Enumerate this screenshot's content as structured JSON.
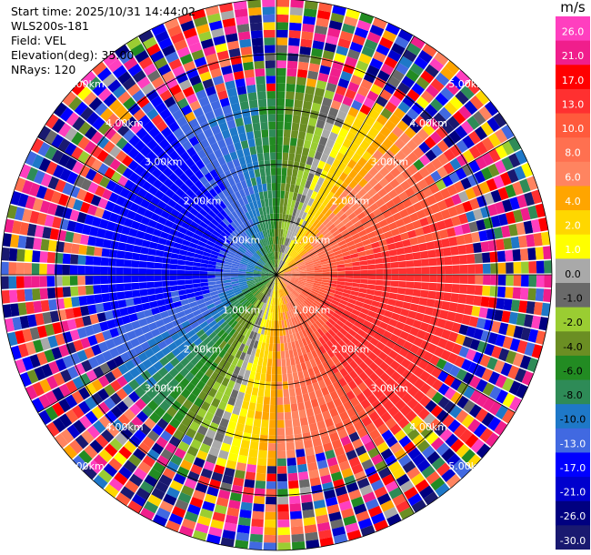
{
  "header": {
    "start_time": "Start time: 2025/10/31 14:44:02",
    "instrument": "WLS200s-181",
    "field": "Field: VEL",
    "elevation": "Elevation(deg): 35.00",
    "nrays": "NRays: 120"
  },
  "chart_data": {
    "type": "ppi",
    "field": "VEL",
    "elevation_deg": 35.0,
    "nrays": 120,
    "max_range_km": 5.0,
    "range_rings_km": [
      1,
      2,
      3,
      4,
      5
    ],
    "range_ring_labels": [
      "1.00km",
      "2.00km",
      "3.00km",
      "4.00km",
      "5.00km"
    ],
    "colorbar": {
      "unit": "m/s",
      "tick_labels": [
        "26.0",
        "21.0",
        "17.0",
        "13.0",
        "10.0",
        "8.0",
        "6.0",
        "4.0",
        "2.0",
        "1.0",
        "0.0",
        "-1.0",
        "-2.0",
        "-4.0",
        "-6.0",
        "-8.0",
        "-10.0",
        "-13.0",
        "-17.0",
        "-21.0",
        "-26.0",
        "-30.0"
      ],
      "bins": [
        {
          "min": 26,
          "max": 30,
          "color": "#ff3fbf"
        },
        {
          "min": 21,
          "max": 26,
          "color": "#f01e8c"
        },
        {
          "min": 17,
          "max": 21,
          "color": "#ff0000"
        },
        {
          "min": 13,
          "max": 17,
          "color": "#ff3030"
        },
        {
          "min": 10,
          "max": 13,
          "color": "#ff5a3c"
        },
        {
          "min": 8,
          "max": 10,
          "color": "#ff7050"
        },
        {
          "min": 6,
          "max": 8,
          "color": "#ff8460"
        },
        {
          "min": 4,
          "max": 6,
          "color": "#ffa500"
        },
        {
          "min": 2,
          "max": 4,
          "color": "#ffd700"
        },
        {
          "min": 1,
          "max": 2,
          "color": "#ffff00"
        },
        {
          "min": 0,
          "max": 1,
          "color": "#a9a9a9"
        },
        {
          "min": -1,
          "max": 0,
          "color": "#696969"
        },
        {
          "min": -2,
          "max": -1,
          "color": "#9acd32"
        },
        {
          "min": -4,
          "max": -2,
          "color": "#6b8e23"
        },
        {
          "min": -6,
          "max": -4,
          "color": "#228b22"
        },
        {
          "min": -8,
          "max": -6,
          "color": "#2e8b57"
        },
        {
          "min": -10,
          "max": -8,
          "color": "#1e78c8"
        },
        {
          "min": -13,
          "max": -10,
          "color": "#4169e1"
        },
        {
          "min": -17,
          "max": -13,
          "color": "#0000ff"
        },
        {
          "min": -21,
          "max": -17,
          "color": "#0000cd"
        },
        {
          "min": -26,
          "max": -21,
          "color": "#000080"
        },
        {
          "min": -30,
          "max": -26,
          "color": "#191970"
        }
      ]
    },
    "velocity_pattern": {
      "peak_inbound_ms": -16,
      "peak_inbound_azimuth_deg": 290,
      "peak_outbound_ms": 16,
      "peak_outbound_azimuth_deg": 110,
      "valid_range_km": 3.2
    }
  }
}
